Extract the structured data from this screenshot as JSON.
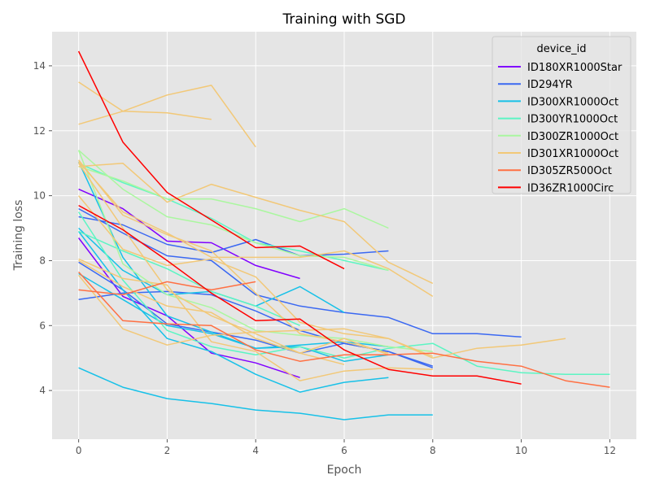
{
  "chart_data": {
    "type": "line",
    "title": "Training with SGD",
    "xlabel": "Epoch",
    "ylabel": "Training loss",
    "xlim": [
      -0.6,
      12.6
    ],
    "ylim": [
      2.5,
      15.05
    ],
    "xticks": [
      0,
      2,
      4,
      6,
      8,
      10,
      12
    ],
    "yticks": [
      4,
      6,
      8,
      10,
      12,
      14
    ],
    "grid": true,
    "style": "ggplot",
    "legend": {
      "title": "device_id",
      "position": "top-right"
    },
    "groups": [
      {
        "name": "ID180XR1000Star",
        "color": "#8000ff"
      },
      {
        "name": "ID294YR",
        "color": "#3a68f2"
      },
      {
        "name": "ID300XR1000Oct",
        "color": "#17c1e8"
      },
      {
        "name": "ID300YR1000Oct",
        "color": "#5cf5c3"
      },
      {
        "name": "ID300ZR1000Oct",
        "color": "#aaf79f"
      },
      {
        "name": "ID301XR1000Oct",
        "color": "#f2c877"
      },
      {
        "name": "ID305ZR500Oct",
        "color": "#ff7043"
      },
      {
        "name": "ID36ZR1000Circ",
        "color": "#ff0000"
      }
    ],
    "series": [
      {
        "group": 0,
        "x": [
          0,
          1,
          2,
          3,
          4,
          5
        ],
        "y": [
          10.2,
          9.6,
          8.6,
          8.55,
          7.85,
          7.45
        ]
      },
      {
        "group": 0,
        "x": [
          0,
          1,
          2,
          3,
          4,
          5
        ],
        "y": [
          8.7,
          6.9,
          6.3,
          5.15,
          4.85,
          4.4
        ]
      },
      {
        "group": 1,
        "x": [
          0,
          1,
          2,
          3,
          4,
          5,
          6,
          7,
          8,
          9,
          10
        ],
        "y": [
          6.8,
          7.0,
          7.05,
          6.95,
          6.45,
          5.85,
          5.45,
          5.2,
          4.75,
          null,
          null
        ]
      },
      {
        "group": 1,
        "x": [
          0,
          1,
          2,
          3,
          4,
          5,
          6,
          7,
          8,
          9,
          10
        ],
        "y": [
          9.35,
          9.1,
          8.5,
          8.25,
          8.65,
          8.15,
          8.2,
          8.3,
          null,
          null,
          null
        ]
      },
      {
        "group": 1,
        "x": [
          0,
          1,
          2,
          3,
          4,
          5,
          6,
          7,
          8,
          9,
          10
        ],
        "y": [
          9.6,
          8.85,
          8.15,
          8.0,
          6.95,
          6.6,
          6.4,
          6.25,
          5.75,
          5.75,
          5.65
        ]
      },
      {
        "group": 1,
        "x": [
          0,
          1,
          2,
          3,
          4,
          5,
          6,
          7,
          8
        ],
        "y": [
          7.95,
          7.1,
          6.05,
          5.8,
          5.55,
          5.15,
          5.45,
          5.2,
          4.7
        ]
      },
      {
        "group": 2,
        "x": [
          0,
          1,
          2,
          3,
          4,
          5,
          6,
          7,
          8
        ],
        "y": [
          4.7,
          4.1,
          3.75,
          3.6,
          3.4,
          3.3,
          3.1,
          3.25,
          3.25
        ]
      },
      {
        "group": 2,
        "x": [
          0,
          1,
          2,
          3,
          4,
          5,
          6,
          7
        ],
        "y": [
          11.05,
          8.1,
          6.3,
          5.8,
          5.3,
          5.35,
          4.9,
          5.1
        ]
      },
      {
        "group": 2,
        "x": [
          0,
          1,
          2,
          3,
          4,
          5,
          6
        ],
        "y": [
          9.0,
          7.7,
          6.95,
          7.05,
          6.6,
          7.2,
          6.4
        ]
      },
      {
        "group": 2,
        "x": [
          0,
          1,
          2,
          3,
          4,
          5,
          6,
          7
        ],
        "y": [
          7.6,
          6.8,
          6.0,
          5.75,
          5.3,
          5.4,
          5.5,
          5.35
        ]
      },
      {
        "group": 2,
        "x": [
          0,
          1,
          2,
          3,
          4,
          5,
          6,
          7
        ],
        "y": [
          8.9,
          7.1,
          5.6,
          5.2,
          4.5,
          3.95,
          4.25,
          4.4
        ]
      },
      {
        "group": 3,
        "x": [
          0,
          1,
          2,
          3,
          4,
          5,
          6,
          7,
          8,
          9,
          10,
          11,
          12
        ],
        "y": [
          9.5,
          7.4,
          5.85,
          5.35,
          5.1,
          5.35,
          5.0,
          5.3,
          5.45,
          4.75,
          4.55,
          4.5,
          4.5
        ]
      },
      {
        "group": 3,
        "x": [
          0,
          1,
          2,
          3,
          4,
          5
        ],
        "y": [
          8.9,
          8.3,
          7.75,
          7.05,
          6.6,
          6.0
        ]
      },
      {
        "group": 3,
        "x": [
          0,
          1,
          2,
          3,
          4,
          5,
          6,
          7
        ],
        "y": [
          11.0,
          10.4,
          9.9,
          9.3,
          8.55,
          8.3,
          8.0,
          7.7
        ]
      },
      {
        "group": 4,
        "x": [
          0,
          1,
          2,
          3,
          4,
          5,
          6,
          7
        ],
        "y": [
          11.4,
          10.2,
          9.35,
          9.1,
          8.55,
          8.15,
          8.1,
          7.7
        ]
      },
      {
        "group": 4,
        "x": [
          0,
          1,
          2,
          3,
          4,
          5,
          6,
          7
        ],
        "y": [
          10.9,
          10.45,
          9.9,
          9.9,
          9.6,
          9.2,
          9.6,
          9.0
        ]
      },
      {
        "group": 4,
        "x": [
          0,
          1,
          2,
          3,
          4,
          5,
          6,
          7,
          8
        ],
        "y": [
          11.4,
          7.9,
          6.95,
          6.55,
          5.85,
          5.7,
          5.6,
          5.35,
          5.2
        ]
      },
      {
        "group": 5,
        "x": [
          0,
          1,
          2,
          3
        ],
        "y": [
          12.2,
          12.6,
          12.55,
          12.35
        ]
      },
      {
        "group": 5,
        "x": [
          0,
          1,
          2,
          3,
          4
        ],
        "y": [
          13.5,
          12.6,
          13.1,
          13.4,
          11.5
        ]
      },
      {
        "group": 5,
        "x": [
          0,
          1,
          2,
          3,
          4,
          5,
          6,
          7,
          8
        ],
        "y": [
          10.9,
          11.0,
          9.8,
          10.35,
          9.95,
          9.55,
          9.2,
          7.95,
          7.3
        ]
      },
      {
        "group": 5,
        "x": [
          0,
          1,
          2,
          3,
          4,
          5,
          6,
          7,
          8,
          9,
          10,
          11
        ],
        "y": [
          10.0,
          8.35,
          7.85,
          8.05,
          7.5,
          6.1,
          5.75,
          5.6,
          5.0,
          5.3,
          5.4,
          5.6
        ]
      },
      {
        "group": 5,
        "x": [
          0,
          1,
          2,
          3,
          4,
          5,
          6,
          7,
          8
        ],
        "y": [
          11.05,
          9.5,
          8.85,
          8.1,
          8.1,
          8.1,
          8.3,
          7.75,
          6.9
        ]
      },
      {
        "group": 5,
        "x": [
          0,
          1,
          2,
          3,
          4,
          5,
          6,
          7,
          8
        ],
        "y": [
          7.55,
          5.9,
          5.4,
          5.7,
          5.8,
          5.85,
          5.9,
          5.6,
          5.05
        ]
      },
      {
        "group": 5,
        "x": [
          0,
          1,
          2,
          3,
          4,
          5,
          6,
          7,
          8
        ],
        "y": [
          8.05,
          7.45,
          7.25,
          5.5,
          5.2,
          4.3,
          4.6,
          4.7,
          4.65
        ]
      },
      {
        "group": 5,
        "x": [
          0,
          1,
          2,
          3,
          4,
          5,
          6,
          7
        ],
        "y": [
          11.1,
          9.4,
          8.8,
          8.3,
          7.0,
          5.75,
          5.5,
          5.15
        ]
      },
      {
        "group": 5,
        "x": [
          0,
          1,
          2,
          3,
          4,
          5,
          6
        ],
        "y": [
          11.0,
          9.0,
          7.1,
          6.3,
          5.75,
          5.15,
          4.8
        ]
      },
      {
        "group": 5,
        "x": [
          0,
          1,
          2,
          3,
          4,
          5,
          6,
          7
        ],
        "y": [
          8.0,
          7.2,
          6.6,
          6.4,
          5.6,
          5.15,
          5.6,
          5.1
        ]
      },
      {
        "group": 6,
        "x": [
          0,
          1,
          2,
          3,
          4
        ],
        "y": [
          7.1,
          6.95,
          7.35,
          7.1,
          7.35
        ]
      },
      {
        "group": 6,
        "x": [
          0,
          1,
          2,
          3,
          4,
          5,
          6,
          7,
          8,
          9,
          10,
          11,
          12
        ],
        "y": [
          7.65,
          6.15,
          6.05,
          6.0,
          5.25,
          4.9,
          5.1,
          5.1,
          5.15,
          4.9,
          4.75,
          4.3,
          4.1
        ]
      },
      {
        "group": 7,
        "x": [
          0,
          1,
          2,
          3,
          4,
          5,
          6
        ],
        "y": [
          14.45,
          11.65,
          10.1,
          9.25,
          8.4,
          8.45,
          7.75
        ]
      },
      {
        "group": 7,
        "x": [
          0,
          1,
          2,
          3,
          4,
          5,
          6,
          7,
          8,
          9,
          10
        ],
        "y": [
          9.7,
          8.95,
          8.0,
          7.0,
          6.15,
          6.2,
          5.25,
          4.65,
          4.45,
          4.45,
          4.2
        ]
      }
    ]
  }
}
